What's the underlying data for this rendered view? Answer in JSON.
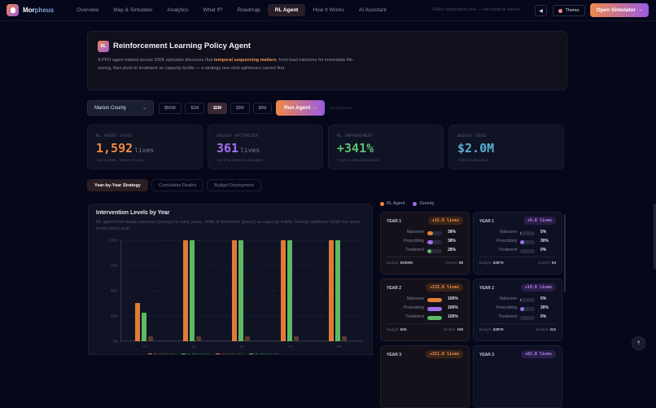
{
  "nav": {
    "brand_part1": "Mor",
    "brand_part2": "pheus",
    "links": [
      "Overview",
      "Map & Simulator",
      "Analytics",
      "What If?",
      "Roadmap",
      "RL Agent",
      "How It Works",
      "AI Assistant"
    ],
    "active_link": "RL Agent",
    "disclaimer": "Policy exploration tool — not medical advice",
    "mute_icon": "speaker-icon",
    "theme_label": "Theme",
    "open_simulator_label": "Open Simulator →"
  },
  "hero": {
    "badge": "RL",
    "title": "Reinforcement Learning Policy Agent",
    "desc_before": "A PPO agent trained across 300K episodes discovers that ",
    "desc_highlight": "temporal sequencing matters",
    "desc_after": ": front-load naloxone for immediate life-saving, then pivot to treatment as capacity builds — a strategy one-shot optimizers cannot find."
  },
  "controls": {
    "county": "Marion County",
    "budgets": [
      "$500K",
      "$1M",
      "$2M",
      "$3M",
      "$5M"
    ],
    "selected_budget": "$2M",
    "run_label": "Run Agent →",
    "inference_note": "live inference"
  },
  "stats": [
    {
      "label": "RL AGENT SAVES",
      "value": "1,592",
      "unit": "lives",
      "sub": "over 5 years · Marion County",
      "color": "#f0873e"
    },
    {
      "label": "GREEDY OPTIMIZER",
      "value": "361",
      "unit": "lives",
      "sub": "one-shot XGBoost allocation",
      "color": "#a36ef0"
    },
    {
      "label": "RL IMPROVEMENT",
      "value": "+341%",
      "unit": "",
      "sub": "+1231.0 extra lives saved",
      "color": "#5cc26a"
    },
    {
      "label": "BUDGET USED",
      "value": "$2.0M",
      "unit": "",
      "sub": "of $2.0M allocated",
      "color": "#5aaed6"
    }
  ],
  "tabs": [
    "Year-by-Year Strategy",
    "Cumulative Deaths",
    "Budget Deployment"
  ],
  "active_tab": "Year-by-Year Strategy",
  "chart": {
    "title": "Intervention Levels by Year",
    "desc": "RL agent front-loads naloxone (orange) in early years, shifts to treatment (green) as capacity builds. Greedy optimizer holds the same levels every year."
  },
  "chart_data": {
    "type": "bar",
    "title": "Intervention Levels by Year",
    "categories": [
      "Y1",
      "Y2",
      "Y3",
      "Y4",
      "Y5"
    ],
    "yticks": [
      "0%",
      "25%",
      "50%",
      "75%",
      "100%"
    ],
    "ylim": [
      0,
      100
    ],
    "series": [
      {
        "name": "RL Naloxone",
        "color": "#e07a35",
        "values": [
          38,
          100,
          100,
          100,
          100
        ]
      },
      {
        "name": "RL Treatment",
        "color": "#5cba62",
        "values": [
          28,
          100,
          100,
          100,
          100
        ]
      },
      {
        "name": "Gr. Naloxone",
        "color": "#5a3a30",
        "values": [
          5,
          5,
          5,
          5,
          5
        ]
      },
      {
        "name": "Gr. Treatment",
        "color": "#2f4a34",
        "values": [
          0,
          0,
          0,
          0,
          0
        ]
      }
    ],
    "legend_position": "bottom"
  },
  "series_legend": [
    {
      "label": "RL Agent",
      "color": "#f0873e"
    },
    {
      "label": "Greedy",
      "color": "#a36ef0"
    }
  ],
  "year_cards": [
    {
      "year": "YEAR 1",
      "type": "rl",
      "gain": "+15.0 lives",
      "naloxone": 38,
      "prescribing": 38,
      "treatment": 28,
      "budget": "$2000K",
      "deaths": "88"
    },
    {
      "year": "YEAR 1",
      "type": "gr",
      "gain": "+9.0 lives",
      "naloxone": 5,
      "prescribing": 30,
      "treatment": 0,
      "budget": "$387K",
      "deaths": "94"
    },
    {
      "year": "YEAR 2",
      "type": "rl",
      "gain": "+133.0 lives",
      "naloxone": 100,
      "prescribing": 100,
      "treatment": 100,
      "budget": "$0K",
      "deaths": "109"
    },
    {
      "year": "YEAR 2",
      "type": "gr",
      "gain": "+19.0 lives",
      "naloxone": 5,
      "prescribing": 30,
      "treatment": 0,
      "budget": "$387K",
      "deaths": "223"
    },
    {
      "year": "YEAR 3",
      "type": "rl",
      "gain": "+321.0 lives"
    },
    {
      "year": "YEAR 3",
      "type": "gr",
      "gain": "+82.0 lives"
    }
  ],
  "row_labels": [
    "Naloxone",
    "Prescribing",
    "Treatment"
  ],
  "budget_label": "Budget:",
  "deaths_label": "Deaths:",
  "help_label": "?"
}
